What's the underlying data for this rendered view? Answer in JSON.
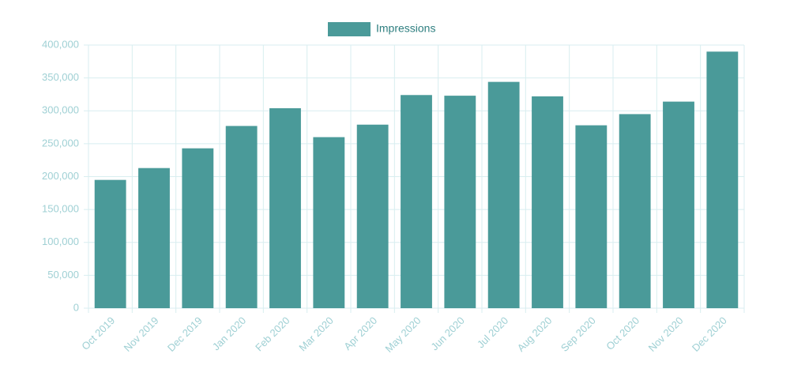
{
  "chart_data": {
    "type": "bar",
    "categories": [
      "Oct 2019",
      "Nov 2019",
      "Dec 2019",
      "Jan 2020",
      "Feb 2020",
      "Mar 2020",
      "Apr 2020",
      "May 2020",
      "Jun 2020",
      "Jul 2020",
      "Aug 2020",
      "Sep 2020",
      "Oct 2020",
      "Nov 2020",
      "Dec 2020"
    ],
    "series": [
      {
        "name": "Impressions",
        "color": "#4a9a99",
        "values": [
          195000,
          213000,
          243000,
          277000,
          304000,
          260000,
          279000,
          324000,
          323000,
          344000,
          322000,
          278000,
          295000,
          314000,
          390000
        ]
      }
    ],
    "ylim": [
      0,
      400000
    ],
    "yticks": [
      0,
      {
        "value": 50000,
        "label": "50,000"
      },
      {
        "value": 100000,
        "label": "100,000"
      },
      {
        "value": 150000,
        "label": "150,000"
      },
      {
        "value": 200000,
        "label": "200,000"
      },
      {
        "value": 250000,
        "label": "250,000"
      },
      {
        "value": 300000,
        "label": "300,000"
      },
      {
        "value": 350000,
        "label": "350,000"
      },
      {
        "value": 400000,
        "label": "400,000"
      }
    ],
    "grid": true,
    "legend": "top"
  }
}
